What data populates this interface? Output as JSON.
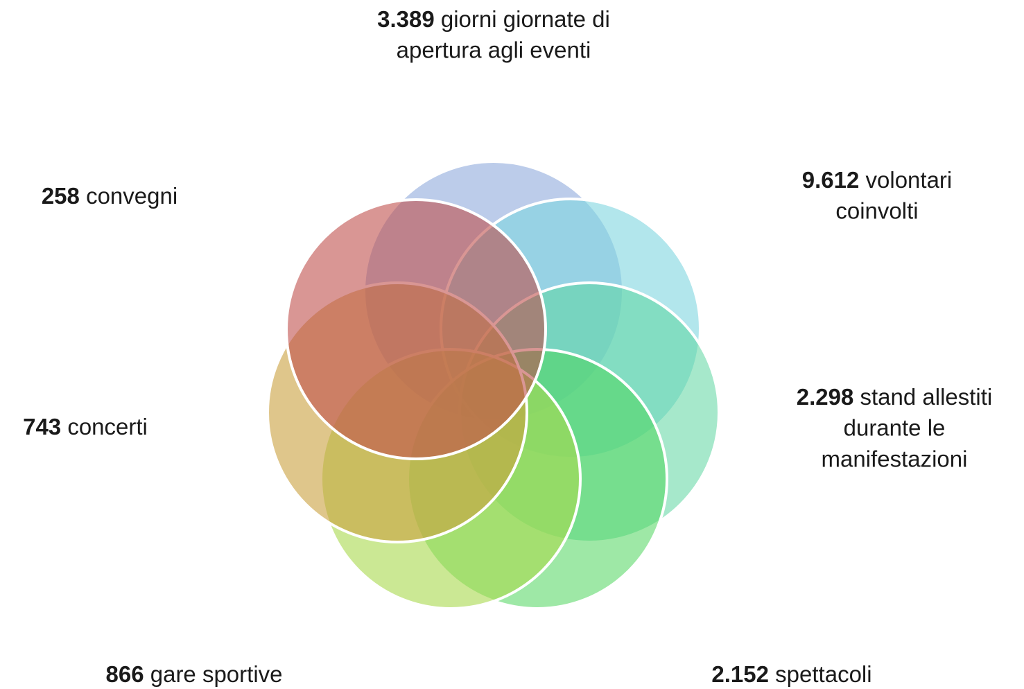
{
  "labels": [
    {
      "number": "3.389",
      "lines": [
        "giorni giornate di",
        "apertura agli eventi"
      ]
    },
    {
      "number": "9.612",
      "lines": [
        "volontari",
        "coinvolti"
      ]
    },
    {
      "number": "2.298",
      "lines": [
        "stand allestiti",
        "durante le",
        "manifestazioni"
      ]
    },
    {
      "number": "2.152",
      "lines": [
        "spettacoli"
      ]
    },
    {
      "number": "866",
      "lines": [
        "gare sportive"
      ]
    },
    {
      "number": "743",
      "lines": [
        "concerti"
      ]
    },
    {
      "number": "258",
      "lines": [
        "convegni"
      ]
    }
  ]
}
